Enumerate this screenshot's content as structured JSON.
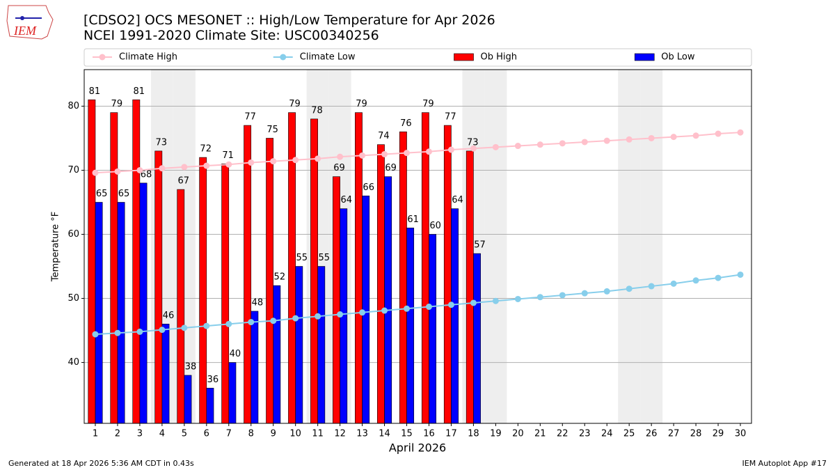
{
  "chart_data": {
    "type": "bar",
    "title": "[CDSO2] OCS MESONET :: High/Low Temperature for Apr 2026",
    "subtitle": "NCEI 1991-2020 Climate Site: USC00340256",
    "logo": "IEM",
    "x_label": "April 2026",
    "y_label": "Temperature °F",
    "footer_left": "Generated at 18 Apr 2026 5:36 AM CDT in 0.43s",
    "footer_right": "IEM Autoplot App #17",
    "x": [
      1,
      2,
      3,
      4,
      5,
      6,
      7,
      8,
      9,
      10,
      11,
      12,
      13,
      14,
      15,
      16,
      17,
      18,
      19,
      20,
      21,
      22,
      23,
      24,
      25,
      26,
      27,
      28,
      29,
      30
    ],
    "xlim": [
      0.5,
      30.5
    ],
    "xticks": [
      1,
      2,
      3,
      4,
      5,
      6,
      7,
      8,
      9,
      10,
      11,
      12,
      13,
      14,
      15,
      16,
      17,
      18,
      19,
      20,
      21,
      22,
      23,
      24,
      25,
      26,
      27,
      28,
      29,
      30
    ],
    "ylim": [
      30.5,
      85.7
    ],
    "yticks": [
      40,
      50,
      60,
      70,
      80
    ],
    "grid": true,
    "shaded_days": [
      4,
      5,
      11,
      12,
      18,
      19,
      25,
      26
    ],
    "legend": "top",
    "series": [
      {
        "name": "Climate High",
        "type": "line",
        "color": "#ffc0cb",
        "values": [
          69.6,
          69.8,
          70.0,
          70.3,
          70.5,
          70.7,
          70.9,
          71.2,
          71.4,
          71.6,
          71.8,
          72.1,
          72.3,
          72.5,
          72.7,
          72.9,
          73.2,
          73.4,
          73.6,
          73.8,
          74.0,
          74.2,
          74.4,
          74.6,
          74.8,
          75.0,
          75.2,
          75.4,
          75.7,
          75.9
        ]
      },
      {
        "name": "Climate Low",
        "type": "line",
        "color": "#87ceeb",
        "values": [
          44.4,
          44.6,
          44.8,
          45.1,
          45.4,
          45.7,
          46.0,
          46.3,
          46.5,
          46.9,
          47.2,
          47.5,
          47.8,
          48.1,
          48.4,
          48.7,
          49.0,
          49.3,
          49.6,
          49.9,
          50.2,
          50.5,
          50.8,
          51.1,
          51.5,
          51.9,
          52.3,
          52.8,
          53.2,
          53.7
        ]
      },
      {
        "name": "Ob High",
        "type": "bar",
        "color": "#ff0000",
        "values": [
          81,
          79,
          81,
          73,
          67,
          72,
          71,
          77,
          75,
          79,
          78,
          69,
          79,
          74,
          76,
          79,
          77,
          73,
          null,
          null,
          null,
          null,
          null,
          null,
          null,
          null,
          null,
          null,
          null,
          null
        ]
      },
      {
        "name": "Ob Low",
        "type": "bar",
        "color": "#0000ff",
        "values": [
          65,
          65,
          68,
          46,
          38,
          36,
          40,
          48,
          52,
          55,
          55,
          64,
          66,
          69,
          61,
          60,
          64,
          57,
          null,
          null,
          null,
          null,
          null,
          null,
          null,
          null,
          null,
          null,
          null,
          null
        ]
      }
    ]
  }
}
